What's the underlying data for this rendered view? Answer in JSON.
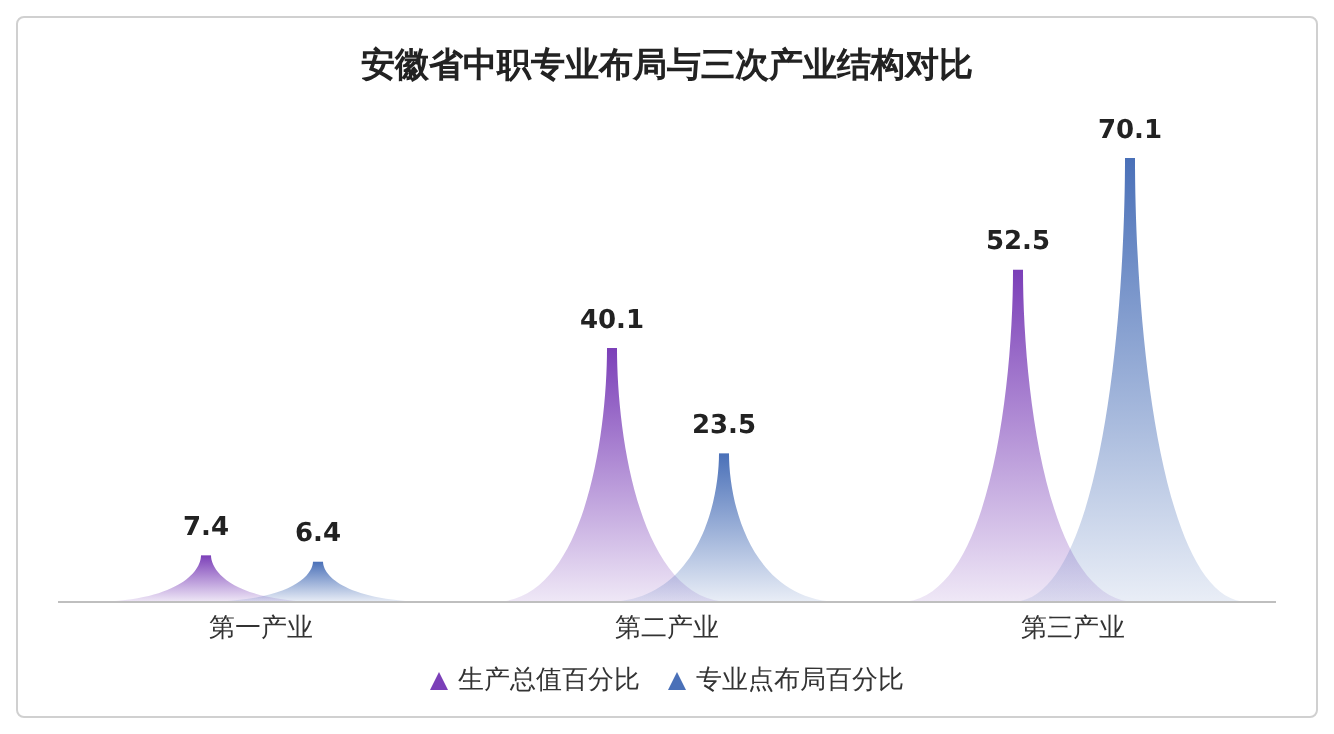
{
  "chart_data": {
    "type": "bar",
    "title": "安徽省中职专业布局与三次产业结构对比",
    "categories": [
      "第一产业",
      "第二产业",
      "第三产业"
    ],
    "series": [
      {
        "name": "生产总值百分比",
        "color": "#7b3fb8",
        "values": [
          7.4,
          40.1,
          52.5
        ]
      },
      {
        "name": "专业点布局百分比",
        "color": "#4a70b8",
        "values": [
          6.4,
          23.5,
          70.1
        ]
      }
    ],
    "data_labels": true,
    "legend": "bottom",
    "grid": false
  }
}
